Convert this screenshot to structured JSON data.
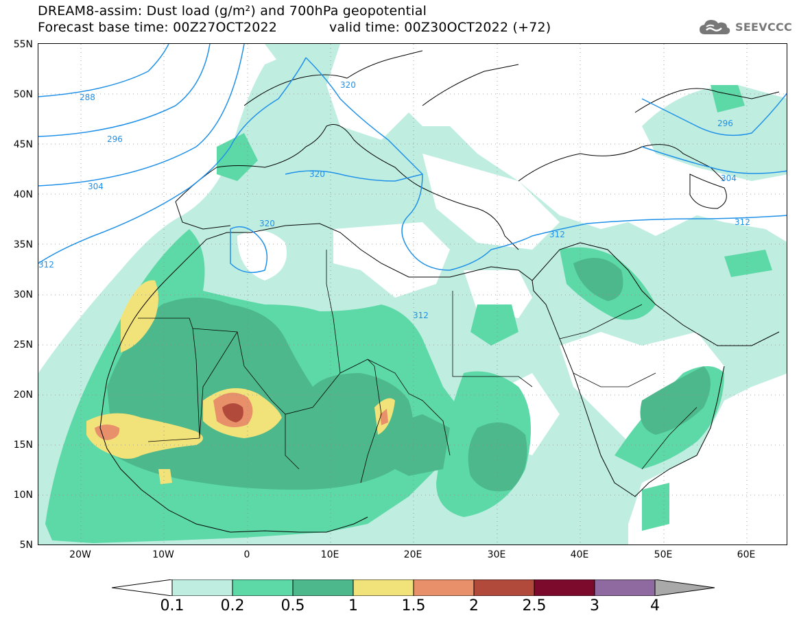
{
  "header": {
    "title_line1": "DREAM8-assim: Dust load (g/m²) and 700hPa geopotential",
    "title_line2_left": "Forecast base time: 00Z27OCT2022",
    "title_line2_right": "valid time: 00Z30OCT2022 (+72)"
  },
  "logo": {
    "text": "SEEVCCC",
    "icon": "cloud-icon"
  },
  "map": {
    "lat_labels": [
      "55N",
      "50N",
      "45N",
      "40N",
      "35N",
      "30N",
      "25N",
      "20N",
      "15N",
      "10N",
      "5N"
    ],
    "lon_labels": [
      "20W",
      "10W",
      "0",
      "10E",
      "20E",
      "30E",
      "40E",
      "50E",
      "60E"
    ],
    "contour_labels": [
      "288",
      "296",
      "304",
      "312",
      "320",
      "320",
      "320",
      "312",
      "312",
      "312",
      "296",
      "304"
    ],
    "colors": {
      "band_0_1": "#bfeee1",
      "band_0_2": "#5dd9a8",
      "band_0_5": "#4cb88b",
      "band_1": "#f2e27a",
      "band_1_5": "#e8906a",
      "band_2": "#b24a3c",
      "contour": "#1e90e8",
      "coast": "#000000"
    }
  },
  "legend": {
    "ticks": [
      "0.1",
      "0.2",
      "0.5",
      "1",
      "1.5",
      "2",
      "2.5",
      "3",
      "4"
    ],
    "colors": [
      "#bfeee1",
      "#5dd9a8",
      "#4cb88b",
      "#f2e27a",
      "#e8906a",
      "#b24a3c",
      "#7c0a2c",
      "#8f6aa0"
    ],
    "under_color": "#ffffff",
    "over_color": "#a9a9a9"
  }
}
